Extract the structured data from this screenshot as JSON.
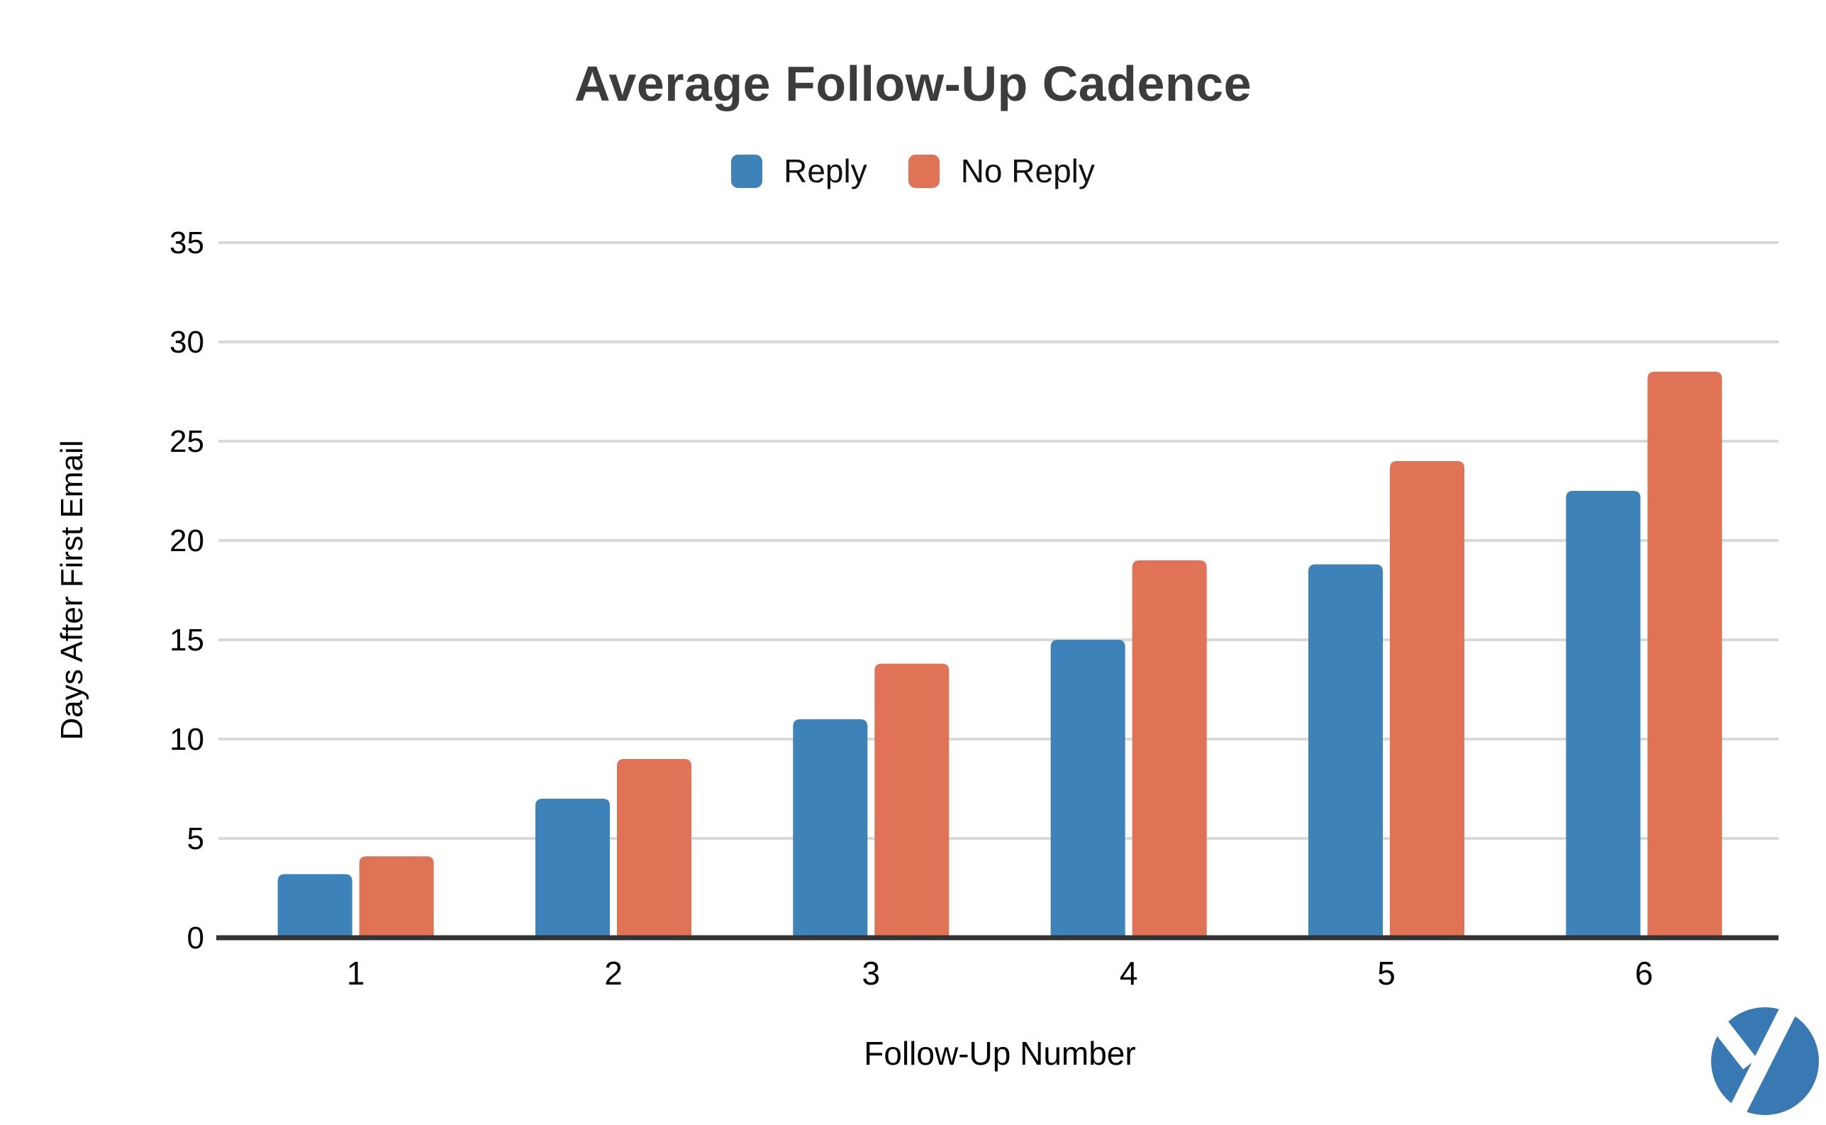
{
  "chart_data": {
    "type": "bar",
    "title": "Average Follow-Up Cadence",
    "categories": [
      "1",
      "2",
      "3",
      "4",
      "5",
      "6"
    ],
    "series": [
      {
        "name": "Reply",
        "color": "#3D82B8",
        "values": [
          3.2,
          7,
          11,
          15,
          18.8,
          22.5
        ]
      },
      {
        "name": "No Reply",
        "color": "#E07356",
        "values": [
          4.1,
          9,
          13.8,
          19,
          24,
          28.5
        ]
      }
    ],
    "xlabel": "Follow-Up Number",
    "ylabel": "Days After First Email",
    "ylim": [
      0,
      35
    ],
    "yticks": [
      0,
      5,
      10,
      15,
      20,
      25,
      30,
      35
    ],
    "grid": true,
    "legend_position": "top",
    "bar_corner_radius": 10
  },
  "styles": {
    "gridline_color": "#D9D9D9",
    "axis_line_color": "#333333",
    "tick_label_color": "#000000",
    "title_color": "#3C3C3C"
  },
  "logo": {
    "shape": "circle-with-white-y-monogram",
    "color": "#3878B3"
  }
}
